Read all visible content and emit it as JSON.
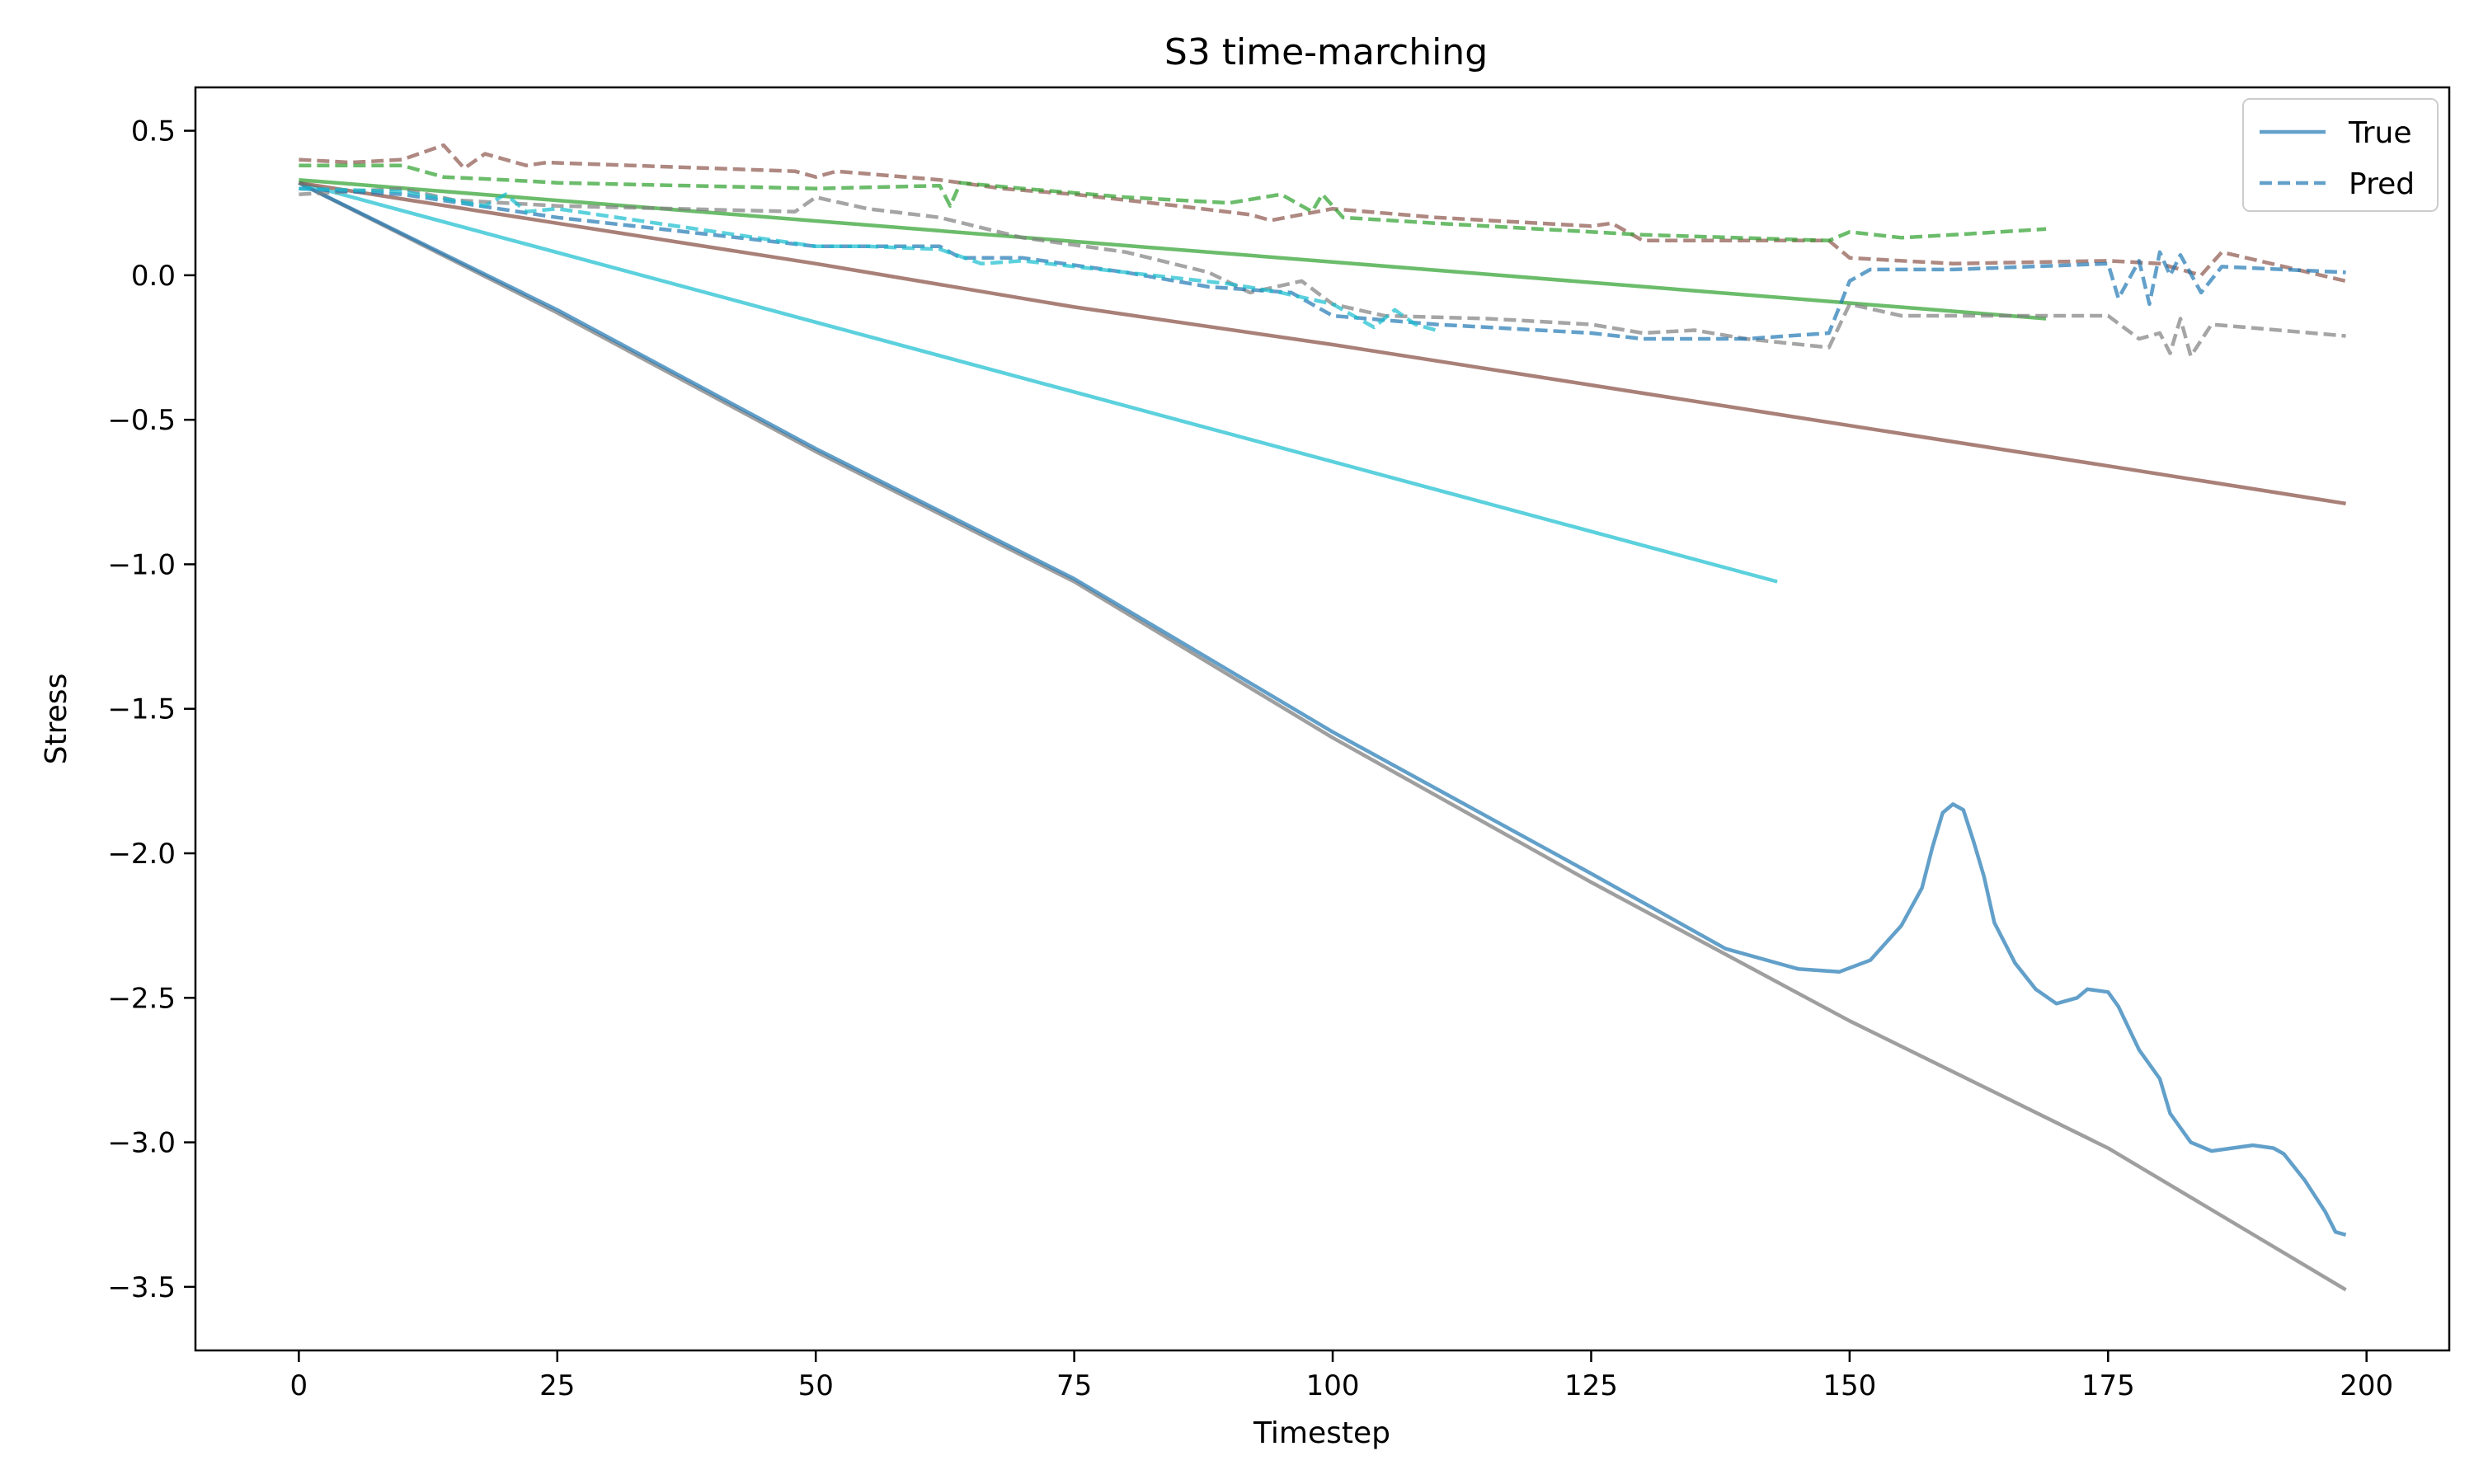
{
  "chart_data": {
    "type": "line",
    "title": "S3 time-marching",
    "xlabel": "Timestep",
    "ylabel": "Stress",
    "xlim": [
      -10,
      208
    ],
    "ylim": [
      -3.72,
      0.65
    ],
    "xticks": [
      0,
      25,
      50,
      75,
      100,
      125,
      150,
      175,
      200
    ],
    "yticks": [
      0.5,
      0.0,
      -0.5,
      -1.0,
      -1.5,
      -2.0,
      -2.5,
      -3.0,
      -3.5
    ],
    "xtick_labels": [
      "0",
      "25",
      "50",
      "75",
      "100",
      "125",
      "150",
      "175",
      "200"
    ],
    "ytick_labels": [
      "0.5",
      "0.0",
      "−0.5",
      "−1.0",
      "−1.5",
      "−2.0",
      "−2.5",
      "−3.0",
      "−3.5"
    ],
    "grid": false,
    "legend": {
      "position": "top-right",
      "entries": [
        {
          "label": "True",
          "style": "solid",
          "color": "#1f77b4"
        },
        {
          "label": "Pred",
          "style": "dashed",
          "color": "#1f77b4"
        }
      ]
    },
    "series": [
      {
        "color": "#7f7f7f",
        "style": "solid",
        "alpha": 0.75,
        "points": [
          [
            0,
            0.32
          ],
          [
            25,
            -0.13
          ],
          [
            50,
            -0.61
          ],
          [
            75,
            -1.06
          ],
          [
            100,
            -1.6
          ],
          [
            125,
            -2.1
          ],
          [
            150,
            -2.58
          ],
          [
            175,
            -3.02
          ],
          [
            198,
            -3.51
          ]
        ]
      },
      {
        "color": "#1f77b4",
        "style": "solid",
        "alpha": 0.7,
        "points": [
          [
            0,
            0.32
          ],
          [
            25,
            -0.12
          ],
          [
            50,
            -0.6
          ],
          [
            75,
            -1.05
          ],
          [
            100,
            -1.58
          ],
          [
            125,
            -2.07
          ],
          [
            138,
            -2.33
          ],
          [
            145,
            -2.4
          ],
          [
            149,
            -2.41
          ],
          [
            152,
            -2.37
          ],
          [
            155,
            -2.25
          ],
          [
            157,
            -2.12
          ],
          [
            158,
            -1.98
          ],
          [
            159,
            -1.86
          ],
          [
            160,
            -1.83
          ],
          [
            161,
            -1.85
          ],
          [
            162,
            -1.96
          ],
          [
            163,
            -2.08
          ],
          [
            164,
            -2.24
          ],
          [
            166,
            -2.38
          ],
          [
            168,
            -2.47
          ],
          [
            170,
            -2.52
          ],
          [
            172,
            -2.5
          ],
          [
            173,
            -2.47
          ],
          [
            175,
            -2.48
          ],
          [
            176,
            -2.53
          ],
          [
            178,
            -2.68
          ],
          [
            180,
            -2.78
          ],
          [
            181,
            -2.9
          ],
          [
            183,
            -3.0
          ],
          [
            185,
            -3.03
          ],
          [
            187,
            -3.02
          ],
          [
            189,
            -3.01
          ],
          [
            191,
            -3.02
          ],
          [
            192,
            -3.04
          ],
          [
            194,
            -3.13
          ],
          [
            196,
            -3.24
          ],
          [
            197,
            -3.31
          ],
          [
            198,
            -3.32
          ]
        ]
      },
      {
        "color": "#17becf",
        "style": "solid",
        "alpha": 0.7,
        "points": [
          [
            0,
            0.32
          ],
          [
            143,
            -1.06
          ]
        ]
      },
      {
        "color": "#8c564b",
        "style": "solid",
        "alpha": 0.75,
        "points": [
          [
            0,
            0.32
          ],
          [
            25,
            0.18
          ],
          [
            50,
            0.04
          ],
          [
            75,
            -0.11
          ],
          [
            100,
            -0.24
          ],
          [
            125,
            -0.38
          ],
          [
            150,
            -0.52
          ],
          [
            175,
            -0.66
          ],
          [
            198,
            -0.79
          ]
        ]
      },
      {
        "color": "#2ca02c",
        "style": "solid",
        "alpha": 0.7,
        "points": [
          [
            0,
            0.33
          ],
          [
            169,
            -0.15
          ]
        ]
      },
      {
        "color": "#8c564b",
        "style": "dashed",
        "alpha": 0.7,
        "points": [
          [
            0,
            0.4
          ],
          [
            5,
            0.39
          ],
          [
            10,
            0.4
          ],
          [
            14,
            0.45
          ],
          [
            16,
            0.37
          ],
          [
            18,
            0.42
          ],
          [
            22,
            0.38
          ],
          [
            24,
            0.39
          ],
          [
            48,
            0.36
          ],
          [
            50,
            0.34
          ],
          [
            52,
            0.36
          ],
          [
            62,
            0.33
          ],
          [
            68,
            0.3
          ],
          [
            75,
            0.28
          ],
          [
            85,
            0.24
          ],
          [
            92,
            0.21
          ],
          [
            94,
            0.19
          ],
          [
            100,
            0.23
          ],
          [
            110,
            0.2
          ],
          [
            125,
            0.17
          ],
          [
            127,
            0.18
          ],
          [
            130,
            0.12
          ],
          [
            148,
            0.12
          ],
          [
            150,
            0.06
          ],
          [
            160,
            0.04
          ],
          [
            175,
            0.05
          ],
          [
            180,
            0.04
          ],
          [
            184,
            0.0
          ],
          [
            186,
            0.08
          ],
          [
            198,
            -0.02
          ]
        ]
      },
      {
        "color": "#2ca02c",
        "style": "dashed",
        "alpha": 0.7,
        "points": [
          [
            0,
            0.38
          ],
          [
            10,
            0.38
          ],
          [
            14,
            0.34
          ],
          [
            20,
            0.33
          ],
          [
            25,
            0.32
          ],
          [
            50,
            0.3
          ],
          [
            62,
            0.31
          ],
          [
            63,
            0.24
          ],
          [
            64,
            0.32
          ],
          [
            70,
            0.3
          ],
          [
            80,
            0.27
          ],
          [
            90,
            0.25
          ],
          [
            95,
            0.28
          ],
          [
            98,
            0.22
          ],
          [
            99,
            0.28
          ],
          [
            101,
            0.2
          ],
          [
            110,
            0.18
          ],
          [
            130,
            0.14
          ],
          [
            148,
            0.12
          ],
          [
            150,
            0.15
          ],
          [
            155,
            0.13
          ],
          [
            160,
            0.14
          ],
          [
            169,
            0.16
          ]
        ]
      },
      {
        "color": "#7f7f7f",
        "style": "dashed",
        "alpha": 0.7,
        "points": [
          [
            0,
            0.28
          ],
          [
            10,
            0.3
          ],
          [
            15,
            0.26
          ],
          [
            25,
            0.24
          ],
          [
            48,
            0.22
          ],
          [
            50,
            0.27
          ],
          [
            55,
            0.23
          ],
          [
            62,
            0.2
          ],
          [
            70,
            0.13
          ],
          [
            80,
            0.08
          ],
          [
            88,
            0.01
          ],
          [
            92,
            -0.06
          ],
          [
            97,
            -0.02
          ],
          [
            100,
            -0.1
          ],
          [
            105,
            -0.14
          ],
          [
            115,
            -0.15
          ],
          [
            125,
            -0.17
          ],
          [
            130,
            -0.2
          ],
          [
            135,
            -0.19
          ],
          [
            140,
            -0.22
          ],
          [
            148,
            -0.25
          ],
          [
            150,
            -0.1
          ],
          [
            155,
            -0.14
          ],
          [
            170,
            -0.14
          ],
          [
            175,
            -0.14
          ],
          [
            178,
            -0.22
          ],
          [
            180,
            -0.2
          ],
          [
            181,
            -0.27
          ],
          [
            182,
            -0.15
          ],
          [
            183,
            -0.28
          ],
          [
            185,
            -0.17
          ],
          [
            198,
            -0.21
          ]
        ]
      },
      {
        "color": "#1f77b4",
        "style": "dashed",
        "alpha": 0.7,
        "points": [
          [
            0,
            0.3
          ],
          [
            10,
            0.28
          ],
          [
            25,
            0.2
          ],
          [
            50,
            0.1
          ],
          [
            62,
            0.1
          ],
          [
            64,
            0.06
          ],
          [
            70,
            0.06
          ],
          [
            80,
            0.01
          ],
          [
            88,
            -0.04
          ],
          [
            92,
            -0.05
          ],
          [
            96,
            -0.06
          ],
          [
            100,
            -0.14
          ],
          [
            110,
            -0.17
          ],
          [
            125,
            -0.2
          ],
          [
            130,
            -0.22
          ],
          [
            140,
            -0.22
          ],
          [
            148,
            -0.2
          ],
          [
            150,
            -0.02
          ],
          [
            152,
            0.02
          ],
          [
            160,
            0.02
          ],
          [
            175,
            0.04
          ],
          [
            176,
            -0.08
          ],
          [
            178,
            0.05
          ],
          [
            179,
            -0.1
          ],
          [
            180,
            0.08
          ],
          [
            181,
            0.0
          ],
          [
            182,
            0.07
          ],
          [
            184,
            -0.06
          ],
          [
            186,
            0.03
          ],
          [
            198,
            0.01
          ]
        ]
      },
      {
        "color": "#17becf",
        "style": "dashed",
        "alpha": 0.7,
        "points": [
          [
            0,
            0.3
          ],
          [
            10,
            0.29
          ],
          [
            18,
            0.24
          ],
          [
            20,
            0.28
          ],
          [
            22,
            0.22
          ],
          [
            25,
            0.23
          ],
          [
            50,
            0.1
          ],
          [
            55,
            0.1
          ],
          [
            62,
            0.09
          ],
          [
            66,
            0.04
          ],
          [
            70,
            0.05
          ],
          [
            90,
            -0.03
          ],
          [
            95,
            -0.06
          ],
          [
            100,
            -0.1
          ],
          [
            104,
            -0.18
          ],
          [
            106,
            -0.12
          ],
          [
            108,
            -0.17
          ],
          [
            110,
            -0.19
          ]
        ]
      }
    ]
  }
}
